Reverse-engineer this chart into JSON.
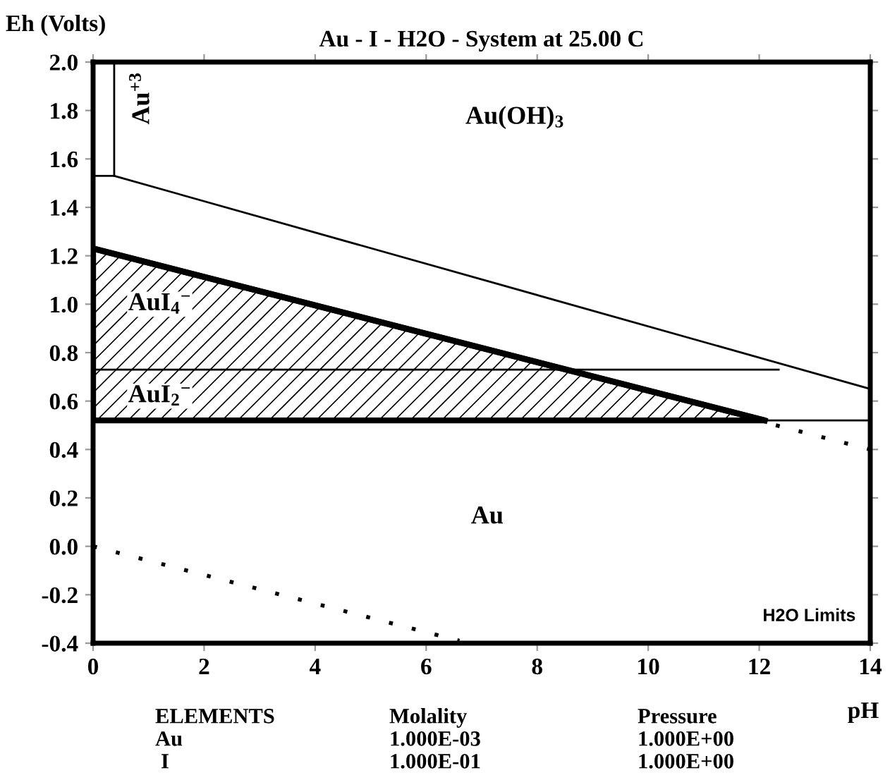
{
  "chart_data": {
    "type": "line",
    "title": "Au - I - H2O - System at 25.00 C",
    "xlabel": "pH",
    "ylabel": "Eh (Volts)",
    "xlim": [
      0,
      14
    ],
    "ylim": [
      -0.4,
      2.0
    ],
    "xticks": [
      0,
      2,
      4,
      6,
      8,
      10,
      12,
      14
    ],
    "yticks": [
      {
        "value": -0.4,
        "label": "-0.4"
      },
      {
        "value": -0.2,
        "label": "-0.2"
      },
      {
        "value": 0,
        "label": "0.0"
      },
      0.2,
      0.4,
      0.6,
      0.8,
      {
        "value": 1.0,
        "label": "1.0"
      },
      1.2,
      1.4,
      1.6,
      1.8,
      {
        "value": 2.0,
        "label": "2.0"
      }
    ],
    "grid": false,
    "marker": "none",
    "series": [
      {
        "type": "area",
        "color": "#000000",
        "x": [
          0,
          12.1
        ],
        "values": [
          1.23,
          0.52
        ]
      },
      {
        "color": "#000000",
        "x": [
          0,
          14
        ],
        "values": [
          0.52,
          0.52
        ]
      },
      {
        "color": "#000000",
        "x": [
          0.38,
          0.38
        ],
        "values": [
          1.53,
          2.0
        ]
      },
      {
        "color": "#000000",
        "x": [
          0,
          0.38,
          14
        ],
        "values": [
          1.53,
          1.53,
          0.65
        ]
      },
      {
        "color": "#000000",
        "x": [
          0,
          12.35
        ],
        "values": [
          0.73,
          0.73
        ]
      },
      {
        "color": "#000000",
        "line_style": "dotted",
        "x": [
          12.3,
          14
        ],
        "values": [
          0.5,
          0.4
        ]
      },
      {
        "color": "#000000",
        "line_style": "dotted",
        "x": [
          0,
          6.6
        ],
        "values": [
          0,
          -0.39
        ]
      }
    ],
    "annotations": [
      "Au$^{+3}$",
      "Au(OH)$_{3}$",
      "AuI$_{4}$$^{−}$",
      "AuI$_{2}$$^{−}$",
      "Au",
      "H2O Limits",
      "ELEMENTS",
      "Molality",
      "Pressure",
      "Au",
      "1.000E-03",
      "1.000E+00",
      "I",
      "1.000E-01",
      "1.000E+00"
    ]
  }
}
